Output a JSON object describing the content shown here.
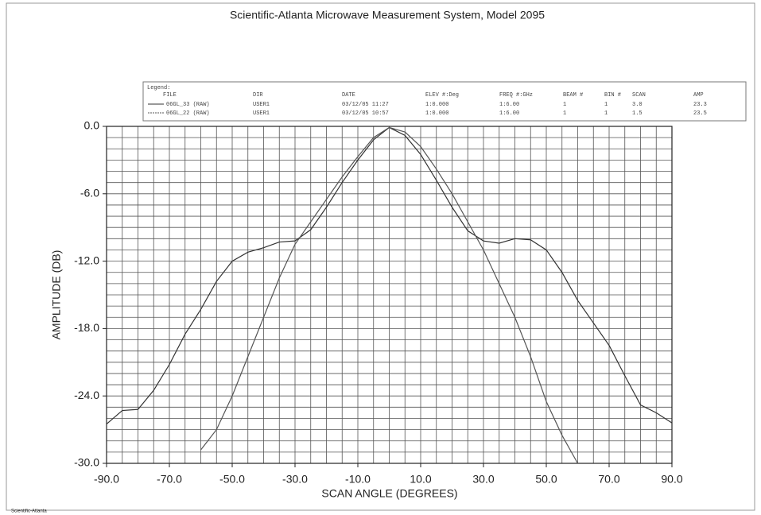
{
  "chart_data": {
    "type": "line",
    "title": "Scientific-Atlanta Microwave Measurement System, Model 2095",
    "xlabel": "SCAN ANGLE (DEGREES)",
    "ylabel": "AMPLITUDE (DB)",
    "footer": "Scientific-Atlanta",
    "xlim": [
      -90,
      90
    ],
    "ylim": [
      -30,
      0
    ],
    "xticks": [
      {
        "value": -90,
        "label": "-90.0"
      },
      {
        "value": -70,
        "label": "-70.0"
      },
      {
        "value": -50,
        "label": "-50.0"
      },
      {
        "value": -30,
        "label": "-30.0"
      },
      {
        "value": -10,
        "label": "-10.0"
      },
      {
        "value": 10,
        "label": "10.0"
      },
      {
        "value": 30,
        "label": "30.0"
      },
      {
        "value": 50,
        "label": "50.0"
      },
      {
        "value": 70,
        "label": "70.0"
      },
      {
        "value": 90,
        "label": "90.0"
      }
    ],
    "yticks": [
      {
        "value": 0,
        "label": "0.0"
      },
      {
        "value": -6,
        "label": "-6.0"
      },
      {
        "value": -12,
        "label": "-12.0"
      },
      {
        "value": -18,
        "label": "-18.0"
      },
      {
        "value": -24,
        "label": "-24.0"
      },
      {
        "value": -30,
        "label": "-30.0"
      }
    ],
    "xgrid": [
      -90,
      -85,
      -80,
      -75,
      -70,
      -65,
      -60,
      -55,
      -50,
      -45,
      -40,
      -35,
      -30,
      -25,
      -20,
      -15,
      -10,
      -5,
      0,
      5,
      10,
      15,
      20,
      25,
      30,
      35,
      40,
      45,
      50,
      55,
      60,
      65,
      70,
      75,
      80,
      85,
      90
    ],
    "ygrid": [
      0,
      -1,
      -2,
      -3,
      -4,
      -5,
      -6,
      -7,
      -8,
      -9,
      -10,
      -11,
      -12,
      -13,
      -14,
      -15,
      -16,
      -17,
      -18,
      -19,
      -20,
      -21,
      -22,
      -23,
      -24,
      -25,
      -26,
      -27,
      -28,
      -29,
      -30
    ],
    "x": [
      -90,
      -85,
      -80,
      -75,
      -70,
      -65,
      -60,
      -55,
      -50,
      -45,
      -40,
      -35,
      -30,
      -25,
      -20,
      -15,
      -10,
      -5,
      0,
      5,
      10,
      15,
      20,
      25,
      30,
      35,
      40,
      45,
      50,
      55,
      60,
      65,
      70,
      75,
      80,
      85,
      90
    ],
    "legend": {
      "title": "Legend:",
      "columns": [
        "FILE",
        "DIR",
        "DATE",
        "ELEV #:Deg",
        "FREQ #:GHz",
        "BEAM #",
        "BIN #",
        "SCAN",
        "AMP"
      ]
    },
    "series": [
      {
        "name": "06GL_33 (RAW)",
        "color": "#333333",
        "info": [
          "USER1",
          "03/12/05 11:27",
          "1:0.000",
          "1:6.00",
          "1",
          "1",
          "3.0",
          "23.3"
        ],
        "values": [
          -26.5,
          -25.3,
          -25.2,
          -23.5,
          -21.2,
          -18.5,
          -16.3,
          -13.8,
          -12,
          -11.2,
          -10.8,
          -10.3,
          -10.2,
          -9.2,
          -7.2,
          -5,
          -3,
          -1.2,
          -0.1,
          -0.8,
          -2.5,
          -4.8,
          -7.2,
          -9.3,
          -10.2,
          -10.4,
          -10,
          -10.1,
          -11,
          -13,
          -15.5,
          -17.5,
          -19.5,
          -22.2,
          -24.8,
          -25.5,
          -26.4
        ]
      },
      {
        "name": "06GL_22 (RAW)",
        "color": "#555555",
        "info": [
          "USER1",
          "03/12/05 10:57",
          "1:0.000",
          "1:6.00",
          "1",
          "1",
          "1.5",
          "23.5"
        ],
        "values": [
          null,
          null,
          null,
          null,
          null,
          null,
          -28.8,
          -27,
          -24,
          -20.5,
          -17,
          -13.5,
          -10.5,
          -8.5,
          -6.5,
          -4.5,
          -2.7,
          -1,
          -0.1,
          -0.5,
          -1.8,
          -3.8,
          -6,
          -8.5,
          -11,
          -14,
          -17,
          -20.5,
          -24.5,
          -27.5,
          -30,
          null,
          null,
          null,
          null,
          null,
          null
        ]
      }
    ]
  }
}
